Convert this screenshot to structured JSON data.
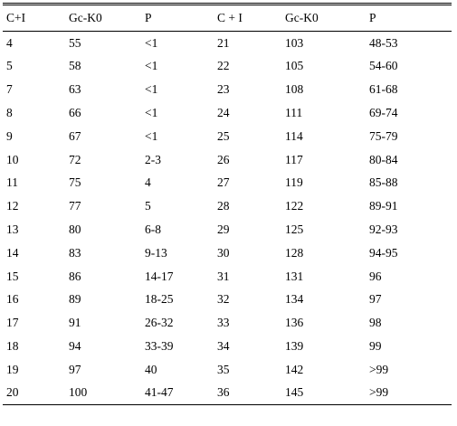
{
  "table": {
    "headers": [
      "C+I",
      "Gc-K0",
      "P",
      "C + I",
      "Gc-K0",
      "P"
    ],
    "rows": [
      [
        "4",
        "55",
        "<1",
        "21",
        "103",
        "48-53"
      ],
      [
        "5",
        "58",
        "<1",
        "22",
        "105",
        "54-60"
      ],
      [
        "7",
        "63",
        "<1",
        "23",
        "108",
        "61-68"
      ],
      [
        "8",
        "66",
        "<1",
        "24",
        "111",
        "69-74"
      ],
      [
        "9",
        "67",
        "<1",
        "25",
        "114",
        "75-79"
      ],
      [
        "10",
        "72",
        "2-3",
        "26",
        "117",
        "80-84"
      ],
      [
        "11",
        "75",
        "4",
        "27",
        "119",
        "85-88"
      ],
      [
        "12",
        "77",
        "5",
        "28",
        "122",
        "89-91"
      ],
      [
        "13",
        "80",
        "6-8",
        "29",
        "125",
        "92-93"
      ],
      [
        "14",
        "83",
        "9-13",
        "30",
        "128",
        "94-95"
      ],
      [
        "15",
        "86",
        "14-17",
        "31",
        "131",
        "96"
      ],
      [
        "16",
        "89",
        "18-25",
        "32",
        "134",
        "97"
      ],
      [
        "17",
        "91",
        "26-32",
        "33",
        "136",
        "98"
      ],
      [
        "18",
        "94",
        "33-39",
        "34",
        "139",
        "99"
      ],
      [
        "19",
        "97",
        "40",
        "35",
        "142",
        ">99"
      ],
      [
        "20",
        "100",
        "41-47",
        "36",
        "145",
        ">99"
      ]
    ]
  }
}
